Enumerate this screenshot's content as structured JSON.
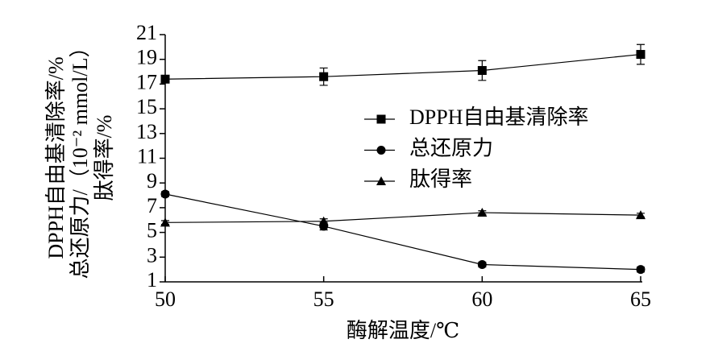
{
  "chart_data": {
    "type": "line",
    "x_label": "酶解温度/℃",
    "y_label": [
      "DPPH自由基清除率/%",
      "总还原力/（10⁻² mmol/L）",
      "肽得率/%"
    ],
    "x": [
      50,
      55,
      60,
      65
    ],
    "xlim": [
      50,
      65
    ],
    "xticks": [
      50,
      55,
      60,
      65
    ],
    "ylim": [
      1,
      21
    ],
    "yticks": [
      1,
      3,
      5,
      7,
      9,
      11,
      13,
      15,
      17,
      19,
      21
    ],
    "series": [
      {
        "name": "DPPH自由基清除率",
        "color": "#000000",
        "marker": "square",
        "values": [
          17.4,
          17.6,
          18.1,
          19.4
        ],
        "errors": [
          0.3,
          0.7,
          0.8,
          0.8
        ]
      },
      {
        "name": "总还原力",
        "color": "#000000",
        "marker": "circle",
        "values": [
          8.1,
          5.5,
          2.4,
          2.0
        ],
        "errors": [
          0.2,
          0.3,
          0.2,
          0.2
        ]
      },
      {
        "name": "肽得率",
        "color": "#000000",
        "marker": "triangle",
        "values": [
          5.8,
          5.9,
          6.6,
          6.4
        ],
        "errors": [
          0.15,
          0.2,
          0.15,
          0.15
        ]
      }
    ]
  }
}
